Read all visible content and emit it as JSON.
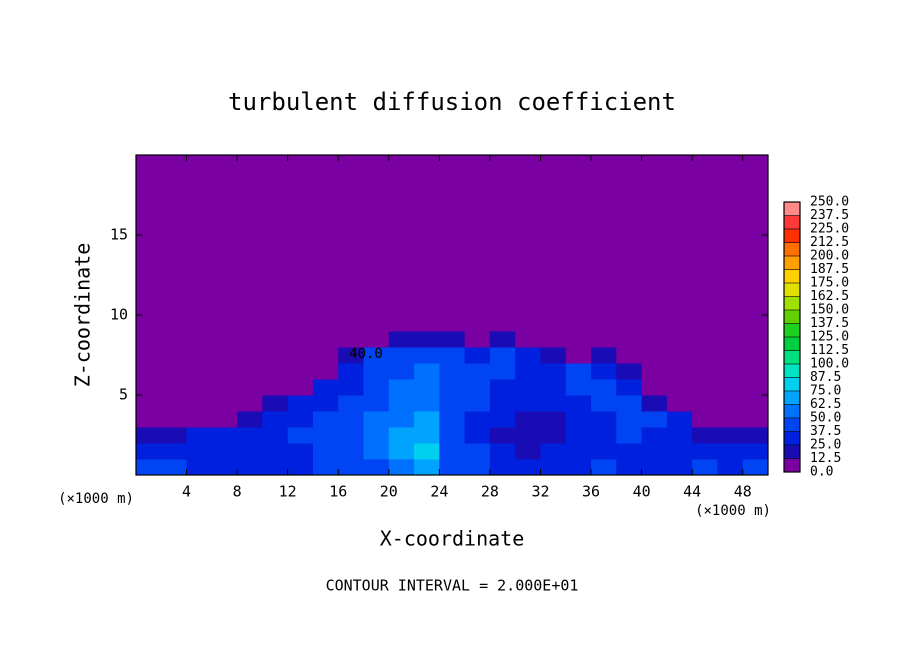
{
  "chart_data": {
    "type": "heatmap",
    "title": "turbulent diffusion coefficient",
    "xlabel": "X-coordinate",
    "ylabel": "Z-coordinate",
    "x_unit": "(×1000 m)",
    "footer": "CONTOUR INTERVAL = 2.000E+01",
    "contour_label": "40.0",
    "xlim": [
      0,
      50
    ],
    "ylim": [
      0,
      20
    ],
    "xticks": [
      4,
      8,
      12,
      16,
      20,
      24,
      28,
      32,
      36,
      40,
      44,
      48
    ],
    "yticks": [
      5,
      10,
      15
    ],
    "x_edges": [
      0,
      2,
      4,
      6,
      8,
      10,
      12,
      14,
      16,
      18,
      20,
      22,
      24,
      26,
      28,
      30,
      32,
      34,
      36,
      38,
      40,
      42,
      44,
      46,
      48,
      50
    ],
    "z_edges": [
      0,
      1,
      2,
      3,
      4,
      5,
      6,
      7,
      8,
      9,
      20
    ],
    "values": [
      [
        40,
        45,
        30,
        35,
        30,
        35,
        35,
        40,
        40,
        45,
        60,
        70,
        40,
        45,
        35,
        30,
        35,
        35,
        40,
        35,
        30,
        35,
        40,
        35,
        40
      ],
      [
        35,
        30,
        25,
        30,
        30,
        35,
        35,
        40,
        45,
        50,
        65,
        75,
        45,
        40,
        30,
        20,
        30,
        30,
        35,
        35,
        30,
        30,
        35,
        30,
        35
      ],
      [
        20,
        20,
        30,
        30,
        35,
        35,
        40,
        45,
        40,
        55,
        65,
        70,
        40,
        35,
        20,
        15,
        20,
        25,
        35,
        40,
        35,
        30,
        15,
        15,
        15
      ],
      [
        5,
        5,
        10,
        10,
        15,
        30,
        35,
        40,
        40,
        50,
        60,
        65,
        40,
        35,
        25,
        20,
        20,
        25,
        35,
        40,
        40,
        30,
        5,
        5,
        5
      ],
      [
        5,
        5,
        5,
        5,
        5,
        15,
        30,
        35,
        40,
        45,
        55,
        60,
        40,
        40,
        35,
        30,
        30,
        35,
        40,
        45,
        20,
        5,
        5,
        5,
        5
      ],
      [
        5,
        5,
        5,
        5,
        5,
        5,
        5,
        30,
        35,
        40,
        50,
        55,
        45,
        40,
        35,
        35,
        35,
        40,
        45,
        35,
        5,
        5,
        5,
        5,
        5
      ],
      [
        5,
        5,
        5,
        5,
        5,
        5,
        5,
        5,
        35,
        40,
        45,
        50,
        45,
        40,
        40,
        35,
        35,
        40,
        35,
        15,
        5,
        5,
        5,
        5,
        5
      ],
      [
        5,
        5,
        5,
        5,
        5,
        5,
        5,
        5,
        15,
        40,
        40,
        45,
        40,
        35,
        40,
        35,
        15,
        5,
        15,
        5,
        5,
        5,
        5,
        5,
        5
      ],
      [
        5,
        5,
        5,
        5,
        5,
        5,
        5,
        5,
        5,
        5,
        15,
        15,
        15,
        5,
        15,
        5,
        5,
        5,
        5,
        5,
        5,
        5,
        5,
        5,
        5
      ],
      [
        0,
        0,
        0,
        0,
        0,
        0,
        0,
        0,
        0,
        0,
        0,
        0,
        0,
        0,
        0,
        0,
        0,
        0,
        0,
        0,
        0,
        0,
        0,
        0,
        0
      ]
    ],
    "levels": [
      {
        "value": 0,
        "label": "0.0"
      },
      12.5,
      {
        "value": 25,
        "label": "25.0"
      },
      37.5,
      {
        "value": 50,
        "label": "50.0"
      },
      62.5,
      {
        "value": 75,
        "label": "75.0"
      },
      87.5,
      {
        "value": 100,
        "label": "100.0"
      },
      112.5,
      {
        "value": 125,
        "label": "125.0"
      },
      137.5,
      {
        "value": 150,
        "label": "150.0"
      },
      162.5,
      {
        "value": 175,
        "label": "175.0"
      },
      187.5,
      {
        "value": 200,
        "label": "200.0"
      },
      212.5,
      {
        "value": 225,
        "label": "225.0"
      },
      237.5,
      {
        "value": 250,
        "label": "250.0"
      }
    ],
    "colorscale": [
      "#7a00a2",
      "#1a0cb4",
      "#0020e0",
      "#0044f4",
      "#0070ff",
      "#00a4ff",
      "#00d0f0",
      "#00e4c4",
      "#00e080",
      "#00d040",
      "#20d020",
      "#60d000",
      "#a0e000",
      "#e0e000",
      "#ffd000",
      "#ffa000",
      "#ff7000",
      "#ff3000",
      "#ff3838",
      "#ff8888"
    ]
  }
}
